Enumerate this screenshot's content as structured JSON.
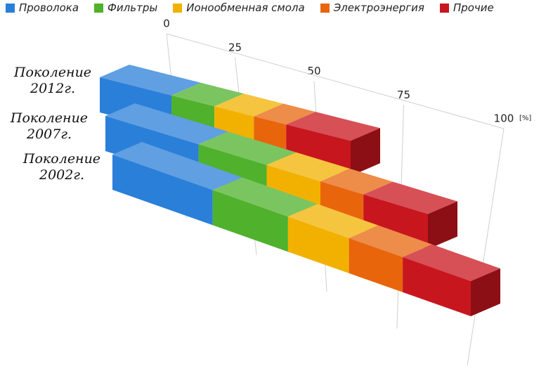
{
  "chart_data": {
    "type": "bar3d",
    "categories": [
      "Поколение 2012г.",
      "Поколение 2007г.",
      "Поколение 2002г."
    ],
    "series": [
      {
        "name": "Проволока",
        "color": "#2a7fd8",
        "values": [
          20,
          26,
          28
        ]
      },
      {
        "name": "Фильтры",
        "color": "#4fb12c",
        "values": [
          12,
          19,
          21
        ]
      },
      {
        "name": "Ионообменная смола",
        "color": "#f2b100",
        "values": [
          11,
          15,
          17
        ]
      },
      {
        "name": "Электроэнергия",
        "color": "#e8650c",
        "values": [
          9,
          12,
          15
        ]
      },
      {
        "name": "Прочие",
        "color": "#c8161e",
        "values": [
          18,
          18,
          19
        ]
      }
    ],
    "xlim": [
      0,
      100
    ],
    "xticks": [
      0,
      25,
      50,
      75,
      100
    ],
    "xlabel": "[%]",
    "grid": true
  }
}
